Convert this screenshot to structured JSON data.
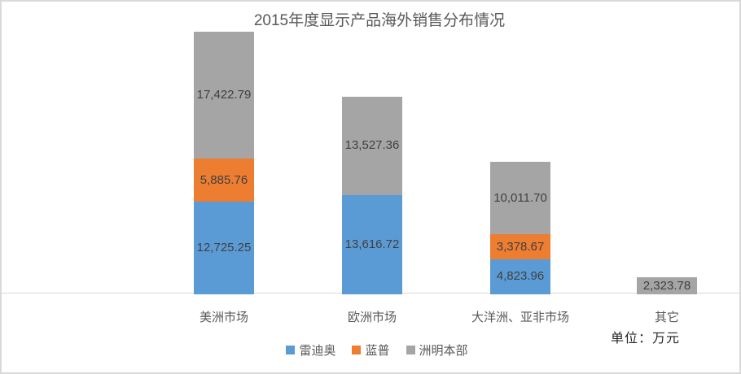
{
  "title": "2015年度显示产品海外销售分布情况",
  "unit_note": "单位：万元",
  "colors": {
    "series_blue": "#5B9BD5",
    "series_orange": "#ED7D31",
    "series_gray": "#A5A5A5",
    "axis_line": "#D9D9D9",
    "data_label_text": "#404040",
    "muted_text": "#595959",
    "frame_border": "#D9D9D9"
  },
  "chart_data": {
    "type": "bar",
    "stacked": true,
    "title": "2015年度显示产品海外销售分布情况",
    "categories": [
      "美洲市场",
      "欧洲市场",
      "大洋洲、亚非市场",
      "其它"
    ],
    "series": [
      {
        "name": "雷迪奥",
        "color": "#5B9BD5",
        "values": [
          12725.25,
          13616.72,
          4823.96,
          0
        ]
      },
      {
        "name": "蓝普",
        "color": "#ED7D31",
        "values": [
          5885.76,
          0,
          3378.67,
          0
        ]
      },
      {
        "name": "洲明本部",
        "color": "#A5A5A5",
        "values": [
          17422.79,
          13527.36,
          10011.7,
          2323.78
        ]
      }
    ],
    "value_unit": "万元",
    "data_labels_shown": true,
    "legend_position": "bottom",
    "ylim": [
      0,
      40000
    ],
    "gridlines": false
  }
}
